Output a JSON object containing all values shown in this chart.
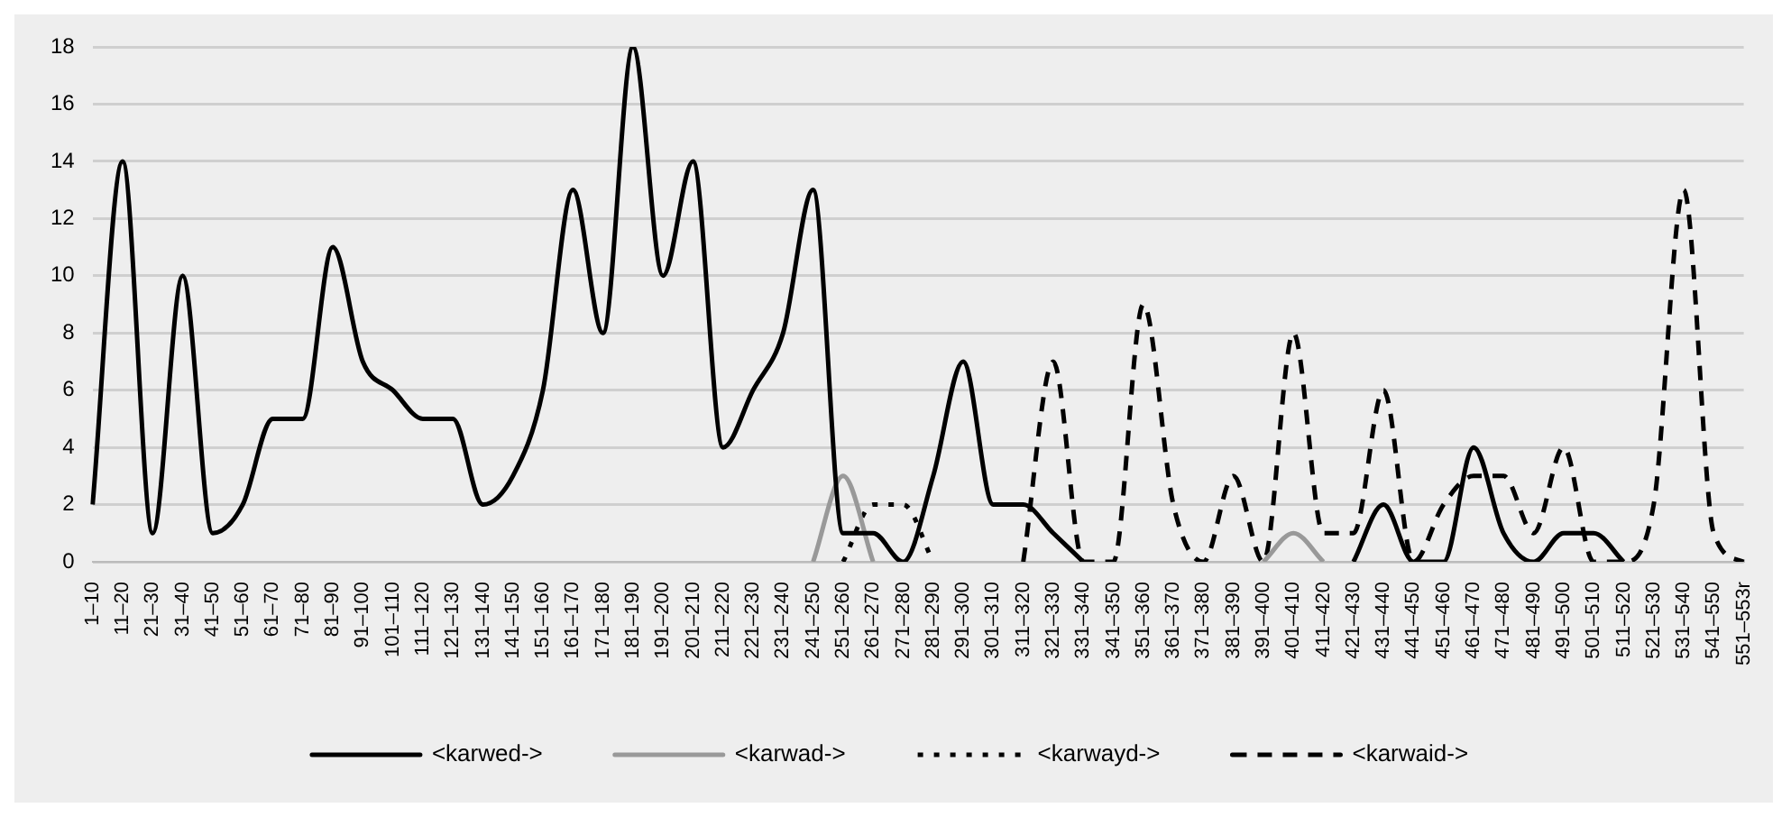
{
  "chart_data": {
    "type": "line",
    "categories": [
      "1–10",
      "11–20",
      "21–30",
      "31–40",
      "41–50",
      "51–60",
      "61–70",
      "71–80",
      "81–90",
      "91–100",
      "101–110",
      "111–120",
      "121–130",
      "131–140",
      "141–150",
      "151–160",
      "161–170",
      "171–180",
      "181–190",
      "191–200",
      "201–210",
      "211–220",
      "221–230",
      "231–240",
      "241–250",
      "251–260",
      "261–270",
      "271–280",
      "281–290",
      "291–300",
      "301–310",
      "311–320",
      "321–330",
      "331–340",
      "341–350",
      "351–360",
      "361–370",
      "371–380",
      "381–390",
      "391–400",
      "401–410",
      "411–420",
      "421–430",
      "431–440",
      "441–450",
      "451–460",
      "461–470",
      "471–480",
      "481–490",
      "491–500",
      "501–510",
      "511–520",
      "521–530",
      "531–540",
      "541–550",
      "551–553r"
    ],
    "series": [
      {
        "name": "<karwed->",
        "color": "#000000",
        "line_style": "solid",
        "values": [
          2,
          14,
          1,
          10,
          1,
          2,
          5,
          5,
          11,
          7,
          6,
          5,
          5,
          2,
          3,
          6,
          13,
          8,
          18,
          10,
          14,
          4,
          6,
          8,
          13,
          1,
          1,
          0,
          3,
          7,
          2,
          2,
          1,
          0,
          null,
          null,
          null,
          null,
          null,
          null,
          null,
          null,
          0,
          2,
          0,
          0,
          4,
          1,
          0,
          1,
          1,
          0,
          null,
          null,
          null,
          null
        ]
      },
      {
        "name": "<karwad->",
        "color": "#999999",
        "line_style": "solid",
        "values": [
          null,
          null,
          null,
          null,
          null,
          null,
          null,
          null,
          null,
          null,
          null,
          null,
          null,
          null,
          null,
          null,
          null,
          null,
          null,
          null,
          null,
          null,
          null,
          null,
          0,
          3,
          0,
          null,
          null,
          null,
          null,
          null,
          null,
          null,
          null,
          null,
          null,
          null,
          null,
          0,
          1,
          0,
          null,
          null,
          null,
          null,
          null,
          null,
          null,
          null,
          null,
          null,
          null,
          null,
          null,
          null
        ]
      },
      {
        "name": "<karwayd->",
        "color": "#000000",
        "line_style": "dotted",
        "values": [
          null,
          null,
          null,
          null,
          null,
          null,
          null,
          null,
          null,
          null,
          null,
          null,
          null,
          null,
          null,
          null,
          null,
          null,
          null,
          null,
          null,
          null,
          null,
          null,
          null,
          0,
          2,
          2,
          0,
          null,
          null,
          null,
          null,
          null,
          null,
          null,
          null,
          null,
          null,
          null,
          null,
          null,
          null,
          null,
          null,
          null,
          null,
          null,
          null,
          null,
          null,
          null,
          null,
          null,
          null,
          null
        ]
      },
      {
        "name": "<karwaid->",
        "color": "#000000",
        "line_style": "dashed",
        "values": [
          null,
          null,
          null,
          null,
          null,
          null,
          null,
          null,
          null,
          null,
          null,
          null,
          null,
          null,
          null,
          null,
          null,
          null,
          null,
          null,
          null,
          null,
          null,
          null,
          null,
          null,
          null,
          null,
          null,
          null,
          null,
          0,
          7,
          0,
          0,
          9,
          2,
          0,
          3,
          0,
          8,
          1,
          1,
          6,
          0,
          2,
          3,
          3,
          1,
          4,
          0,
          0,
          2,
          13,
          1,
          0
        ]
      }
    ],
    "ylim": [
      0,
      18
    ],
    "yticks": [
      0,
      2,
      4,
      6,
      8,
      10,
      12,
      14,
      16,
      18
    ],
    "grid": "y",
    "legend": "bottom",
    "marker": "none"
  }
}
